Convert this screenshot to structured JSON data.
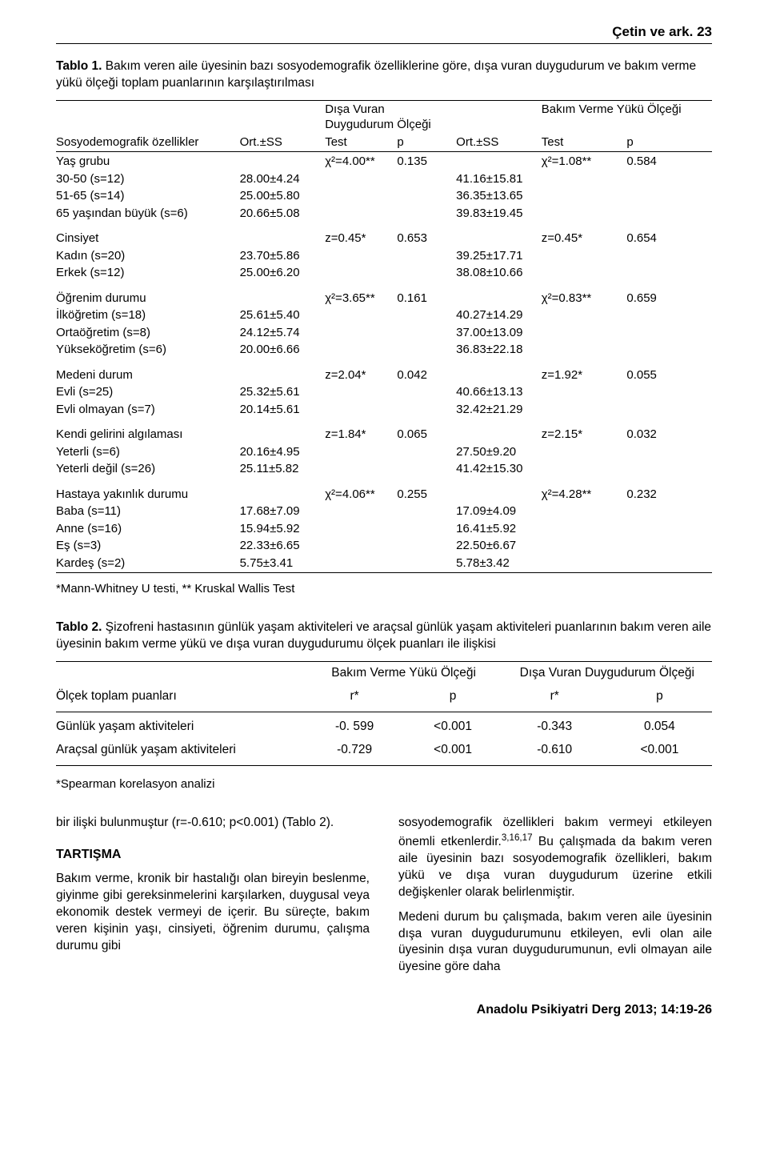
{
  "running_head": "Çetin ve ark.    23",
  "table1": {
    "caption_label": "Tablo 1.",
    "caption_text": "Bakım veren aile üyesinin bazı sosyodemografik özelliklerine göre, dışa vuran duygudurum ve bakım verme yükü ölçeği toplam puanlarının karşılaştırılması",
    "col_group_left": "Dışa Vuran Duygudurum Ölçeği",
    "col_group_right": "Bakım Verme Yükü Ölçeği",
    "col_label": "Sosyodemografik özellikler",
    "col_ort1": "Ort.±SS",
    "col_test": "Test",
    "col_p": "p",
    "col_ort2": "Ort.±SS",
    "groups": [
      {
        "name": "Yaş grubu",
        "test1": "χ²=4.00**",
        "p1": "0.135",
        "test2": "χ²=1.08**",
        "p2": "0.584",
        "rows": [
          {
            "label": "30-50 (s=12)",
            "v1": "28.00±4.24",
            "v2": "41.16±15.81"
          },
          {
            "label": "51-65 (s=14)",
            "v1": "25.00±5.80",
            "v2": "36.35±13.65"
          },
          {
            "label": "65 yaşından büyük (s=6)",
            "v1": "20.66±5.08",
            "v2": "39.83±19.45"
          }
        ]
      },
      {
        "name": "Cinsiyet",
        "test1": "z=0.45*",
        "p1": "0.653",
        "test2": "z=0.45*",
        "p2": "0.654",
        "rows": [
          {
            "label": "Kadın (s=20)",
            "v1": "23.70±5.86",
            "v2": "39.25±17.71"
          },
          {
            "label": "Erkek (s=12)",
            "v1": "25.00±6.20",
            "v2": "38.08±10.66"
          }
        ]
      },
      {
        "name": "Öğrenim durumu",
        "test1": "χ²=3.65**",
        "p1": "0.161",
        "test2": "χ²=0.83**",
        "p2": "0.659",
        "rows": [
          {
            "label": "İlköğretim (s=18)",
            "v1": "25.61±5.40",
            "v2": "40.27±14.29"
          },
          {
            "label": "Ortaöğretim (s=8)",
            "v1": "24.12±5.74",
            "v2": "37.00±13.09"
          },
          {
            "label": "Yükseköğretim (s=6)",
            "v1": "20.00±6.66",
            "v2": "36.83±22.18"
          }
        ]
      },
      {
        "name": "Medeni durum",
        "test1": "z=2.04*",
        "p1": "0.042",
        "test2": "z=1.92*",
        "p2": "0.055",
        "rows": [
          {
            "label": "Evli (s=25)",
            "v1": "25.32±5.61",
            "v2": "40.66±13.13"
          },
          {
            "label": "Evli olmayan (s=7)",
            "v1": "20.14±5.61",
            "v2": "32.42±21.29"
          }
        ]
      },
      {
        "name": "Kendi gelirini algılaması",
        "test1": "z=1.84*",
        "p1": "0.065",
        "test2": "z=2.15*",
        "p2": "0.032",
        "rows": [
          {
            "label": "Yeterli (s=6)",
            "v1": "20.16±4.95",
            "v2": "27.50±9.20"
          },
          {
            "label": "Yeterli değil (s=26)",
            "v1": "25.11±5.82",
            "v2": "41.42±15.30"
          }
        ]
      },
      {
        "name": "Hastaya yakınlık durumu",
        "test1": "χ²=4.06**",
        "p1": "0.255",
        "test2": "χ²=4.28**",
        "p2": "0.232",
        "rows": [
          {
            "label": "Baba (s=11)",
            "v1": "17.68±7.09",
            "v2": "17.09±4.09"
          },
          {
            "label": "Anne (s=16)",
            "v1": "15.94±5.92",
            "v2": "16.41±5.92"
          },
          {
            "label": "Eş (s=3)",
            "v1": "22.33±6.65",
            "v2": "22.50±6.67"
          },
          {
            "label": "Kardeş (s=2)",
            "v1": "5.75±3.41",
            "v2": "5.78±3.42"
          }
        ]
      }
    ],
    "footnote": "*Mann-Whitney U testi,  ** Kruskal Wallis Test"
  },
  "table2": {
    "caption_label": "Tablo 2.",
    "caption_text": "Şizofreni hastasının günlük yaşam aktiviteleri ve araçsal günlük yaşam aktiviteleri puanlarının bakım veren aile üyesinin bakım verme yükü ve dışa vuran duygudurumu ölçek puanları ile ilişkisi",
    "group_left": "Bakım Verme Yükü Ölçeği",
    "group_right": "Dışa Vuran Duygudurum Ölçeği",
    "col_label": "Ölçek toplam puanları",
    "col_r": "r*",
    "col_p": "p",
    "rows": [
      {
        "label": "Günlük yaşam aktiviteleri",
        "r1": "-0. 599",
        "p1": "<0.001",
        "r2": "-0.343",
        "p2": "0.054"
      },
      {
        "label": "Araçsal günlük yaşam aktiviteleri",
        "r1": "-0.729",
        "p1": "<0.001",
        "r2": "-0.610",
        "p2": "<0.001"
      }
    ],
    "footnote": "*Spearman korelasyon analizi"
  },
  "body": {
    "left_p1": "bir ilişki bulunmuştur (r=-0.610; p<0.001) (Tablo 2).",
    "tartisma": "TARTIŞMA",
    "left_p2": "Bakım verme, kronik bir hastalığı olan bireyin beslenme, giyinme gibi gereksinmelerini karşılarken, duygusal veya ekonomik destek vermeyi de içerir. Bu süreçte, bakım veren kişinin yaşı, cinsiyeti, öğrenim durumu, çalışma durumu gibi",
    "right_p1_a": "sosyodemografik özellikleri bakım vermeyi etkileyen önemli etkenlerdir.",
    "right_p1_sup": "3,16,17",
    "right_p1_b": " Bu çalışmada da bakım veren aile üyesinin bazı sosyodemografik özellikleri, bakım yükü ve dışa vuran duygudurum üzerine etkili değişkenler olarak belirlenmiştir.",
    "right_p2": "Medeni durum bu çalışmada, bakım veren aile üyesinin dışa vuran duygudurumunu etkileyen, evli olan aile üyesinin dışa vuran duygudurumunun, evli olmayan aile üyesine göre daha"
  },
  "journal_foot": "Anadolu Psikiyatri Derg 2013; 14:19-26"
}
